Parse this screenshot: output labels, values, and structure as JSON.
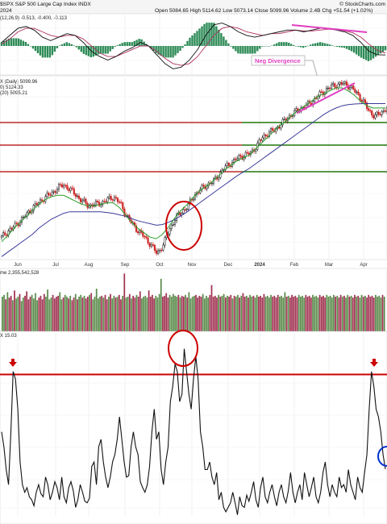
{
  "header": {
    "title": "$SPX S&P 500 Large Cap Index INDX",
    "date": "2024",
    "ohlc": "Open 5084.65  High 5114.62  Low 5073.14  Close 5099.96  Volume 2.4B  Chg +51.54 (+1.02%)",
    "credit": "© StockCharts.com"
  },
  "macd_legend": "(12,26,9) -0.513, -0.400, -0.113",
  "price_legend": {
    "line1": "X (Daily) 5099.96",
    "line2": "0) 5124.33",
    "line3": "(20) 5095.21"
  },
  "volume_legend": "me 2,355,542,528",
  "vix_legend": "X 15.03",
  "annotations": {
    "neg_divergence": "Neg Divergence"
  },
  "colors": {
    "price_up": "#1a1a1a",
    "price_down": "#cc2222",
    "ma_short": "#2aa02a",
    "ma_long": "#3a3a9a",
    "macd_line": "#111111",
    "signal_line": "#b03060",
    "histogram": "#2e8b57",
    "divergence": "#e040c0",
    "resistance_red": "#b00000",
    "support_green": "#008000",
    "circle_red": "#cc0000",
    "circle_blue": "#0033cc",
    "vol_up": "#5a8a4a",
    "vol_down": "#a03050"
  },
  "chart_data": [
    {
      "type": "line",
      "panel": "price",
      "x_tick_labels": [
        "Jun",
        "Jul",
        "Aug",
        "Sep",
        "Oct",
        "Nov",
        "Dec",
        "2024",
        "Feb",
        "Mar",
        "Apr"
      ],
      "series": [
        {
          "values": [
            4230,
            4270,
            4300,
            4340,
            4380,
            4430,
            4460,
            4500,
            4520,
            4560,
            4580,
            4550,
            4510,
            4470,
            4440,
            4450,
            4460,
            4480,
            4500,
            4460,
            4380,
            4320,
            4270,
            4230,
            4180,
            4120,
            4180,
            4280,
            4360,
            4400,
            4440,
            4510,
            4550,
            4580,
            4600,
            4650,
            4700,
            4730,
            4760,
            4780,
            4790,
            4840,
            4900,
            4930,
            4950,
            4990,
            5030,
            5060,
            5090,
            5110,
            5140,
            5180,
            5210,
            5240,
            5250,
            5260,
            5240,
            5200,
            5150,
            5080,
            5040,
            5060,
            5099.96
          ]
        },
        {
          "values": [
            4200,
            4240,
            4290,
            4330,
            4370,
            4410,
            4450,
            4480,
            4500,
            4510,
            4510,
            4490,
            4470,
            4450,
            4440,
            4440,
            4450,
            4460,
            4460,
            4430,
            4380,
            4330,
            4290,
            4260,
            4230,
            4220,
            4250,
            4300,
            4360,
            4410,
            4450,
            4500,
            4540,
            4570,
            4600,
            4640,
            4680,
            4710,
            4740,
            4760,
            4780,
            4820,
            4860,
            4900,
            4940,
            4980,
            5010,
            5050,
            5080,
            5110,
            5140,
            5170,
            5190,
            5210,
            5230,
            5230,
            5210,
            5180,
            5140,
            5110,
            5095,
            5095.21,
            5095.21
          ]
        },
        {
          "values": [
            4100,
            4130,
            4160,
            4190,
            4220,
            4250,
            4290,
            4320,
            4350,
            4370,
            4390,
            4400,
            4400,
            4400,
            4400,
            4400,
            4400,
            4395,
            4390,
            4380,
            4370,
            4355,
            4340,
            4330,
            4320,
            4310,
            4315,
            4330,
            4350,
            4375,
            4400,
            4430,
            4460,
            4490,
            4520,
            4550,
            4580,
            4610,
            4640,
            4665,
            4690,
            4720,
            4750,
            4780,
            4810,
            4840,
            4870,
            4900,
            4930,
            4960,
            4990,
            5020,
            5050,
            5075,
            5095,
            5110,
            5118,
            5122,
            5124,
            5125,
            5124.5,
            5124.33,
            5124.33
          ]
        }
      ],
      "horizontal_lines": [
        {
          "value": 5048,
          "color": "#b00000"
        },
        {
          "value": 4820,
          "color": "#b00000"
        },
        {
          "value": 4600,
          "color": "#b00000"
        },
        {
          "value": 5070,
          "color": "#008000"
        },
        {
          "value": 4800,
          "color": "#008000"
        },
        {
          "value": 4600,
          "color": "#008000"
        }
      ]
    },
    {
      "type": "line",
      "panel": "macd",
      "series": [
        {
          "values": [
            0.2,
            0.6,
            1.0,
            1.1,
            0.9,
            0.5,
            0.3,
            0.5,
            0.7,
            0.6,
            0.2,
            -0.3,
            -0.6,
            -0.8,
            -0.6,
            -0.3,
            -0.1,
            0.2,
            0.0,
            -0.5,
            -1.0,
            -1.3,
            -1.2,
            -0.8,
            -0.2,
            0.6,
            1.2,
            1.3,
            1.1,
            0.8,
            0.6,
            0.5,
            0.6,
            0.7,
            0.8,
            0.9,
            0.9,
            0.8,
            0.9,
            1.0,
            1.0,
            0.9,
            0.8,
            0.6,
            0.2,
            -0.3,
            -0.5,
            -0.513
          ]
        },
        {
          "values": [
            0.1,
            0.4,
            0.8,
            1.0,
            1.0,
            0.8,
            0.6,
            0.5,
            0.6,
            0.6,
            0.4,
            0.0,
            -0.4,
            -0.6,
            -0.6,
            -0.4,
            -0.2,
            0.0,
            0.0,
            -0.3,
            -0.7,
            -1.0,
            -1.1,
            -1.0,
            -0.6,
            0.0,
            0.6,
            1.0,
            1.1,
            1.0,
            0.8,
            0.7,
            0.6,
            0.7,
            0.7,
            0.8,
            0.9,
            0.85,
            0.85,
            0.9,
            0.95,
            0.92,
            0.85,
            0.75,
            0.5,
            0.1,
            -0.25,
            -0.4
          ]
        }
      ]
    },
    {
      "type": "bar",
      "panel": "volume",
      "values": [
        3.9,
        4.1,
        3.6,
        4.4,
        3.8,
        4.0,
        3.5,
        4.6,
        3.7,
        3.9,
        4.2,
        3.4,
        3.8,
        4.0,
        4.5,
        3.6,
        3.9,
        4.1,
        3.7,
        4.3,
        3.5,
        3.8,
        4.0,
        3.6,
        4.2,
        3.9,
        4.7,
        3.6,
        3.8,
        4.1,
        3.7,
        3.9,
        4.0,
        4.4,
        3.6,
        3.8,
        4.1,
        3.9,
        3.7,
        4.0,
        3.5,
        3.8,
        4.2,
        3.6,
        3.9,
        4.1,
        3.8,
        4.0,
        3.7,
        3.9,
        4.1,
        4.3,
        3.6,
        3.9,
        4.8,
        3.7,
        3.9,
        4.0,
        3.8,
        4.1,
        3.6,
        3.9,
        4.2,
        3.7,
        4.0,
        3.8,
        3.9,
        4.1,
        3.6,
        4.0,
        6.5,
        3.8,
        3.9,
        4.2,
        3.7,
        4.0,
        3.8,
        4.1,
        3.9,
        4.5,
        3.7,
        3.9,
        4.0,
        3.8,
        4.6,
        3.9,
        4.1,
        3.7,
        4.0,
        3.8,
        4.2,
        5.9,
        3.9,
        4.0,
        4.3,
        3.8,
        4.1,
        3.9,
        4.2,
        4.0,
        3.9,
        4.1,
        3.8,
        4.0,
        3.9,
        4.1,
        3.8,
        4.4,
        3.7,
        3.9,
        4.0,
        4.1,
        3.8,
        4.0,
        3.9,
        4.2,
        3.7,
        4.0,
        3.8,
        4.1,
        5.2,
        3.9,
        4.0,
        3.8,
        4.1,
        3.9,
        4.0,
        4.2,
        3.8,
        4.0,
        3.9,
        4.1,
        3.7,
        4.0,
        3.9,
        4.1,
        3.8,
        4.0,
        4.3,
        3.9,
        4.0,
        3.8,
        4.1,
        3.9,
        4.0,
        3.8,
        4.1,
        3.9,
        4.0,
        3.8,
        4.2,
        3.9,
        4.0,
        3.8,
        4.1,
        3.9,
        4.0,
        3.8,
        4.1,
        3.9,
        4.0,
        3.8,
        4.4,
        3.9,
        4.0,
        3.8,
        4.1,
        3.9,
        4.0,
        3.8,
        4.1,
        3.9,
        4.0,
        3.8,
        4.1,
        3.9,
        4.0,
        3.8,
        4.1,
        3.9,
        4.0,
        3.8,
        4.1,
        3.9,
        4.0,
        3.8,
        4.1,
        3.9,
        4.0,
        3.8,
        4.1,
        3.9,
        4.0,
        3.8,
        4.1,
        3.9,
        4.0,
        3.8,
        4.1,
        3.9,
        4.0,
        3.8,
        4.1,
        3.9,
        4.0,
        3.8,
        4.1,
        3.9,
        4.0,
        3.8,
        4.1,
        3.9,
        4.0,
        3.8,
        4.1,
        3.9,
        4.0,
        3.8,
        4.1,
        3.9
      ]
    },
    {
      "type": "line",
      "panel": "vix",
      "series": [
        {
          "values": [
            17.5,
            16.5,
            15.0,
            14.0,
            17.5,
            21.5,
            21.0,
            19.0,
            15.5,
            14.0,
            13.5,
            13.8,
            13.2,
            13.0,
            12.6,
            13.5,
            14.0,
            13.4,
            13.2,
            14.5,
            14.0,
            13.0,
            13.5,
            14.2,
            13.8,
            13.0,
            14.5,
            13.2,
            12.8,
            13.8,
            14.2,
            13.6,
            12.5,
            13.0,
            14.0,
            13.5,
            12.9,
            12.8,
            13.1,
            15.2,
            15.5,
            14.0,
            16.5,
            17.0,
            15.5,
            14.5,
            13.8,
            14.5,
            15.5,
            16.0,
            17.0,
            18.5,
            17.0,
            15.5,
            14.5,
            14.6,
            16.5,
            17.5,
            16.5,
            16.0,
            14.2,
            13.8,
            13.5,
            14.0,
            15.2,
            17.5,
            19.0,
            17.0,
            17.5,
            15.0,
            14.0,
            15.5,
            16.5,
            19.5,
            20.5,
            22.0,
            21.5,
            19.5,
            20.0,
            23.0,
            21.5,
            20.0,
            19.0,
            21.0,
            22.5,
            21.0,
            17.5,
            16.5,
            15.0,
            15.0,
            15.5,
            14.5,
            14.0,
            14.8,
            13.0,
            13.5,
            12.5,
            12.2,
            12.5,
            12.8,
            13.5,
            12.8,
            12.0,
            13.2,
            12.6,
            12.5,
            13.3,
            12.9,
            13.5,
            14.2,
            13.0,
            12.5,
            13.8,
            14.5,
            13.2,
            12.8,
            13.5,
            14.0,
            13.2,
            12.6,
            13.5,
            14.0,
            13.2,
            12.8,
            13.6,
            14.8,
            13.5,
            12.8,
            13.5,
            14.0,
            13.0,
            14.8,
            14.0,
            13.2,
            13.8,
            14.5,
            13.2,
            12.8,
            13.5,
            14.8,
            15.5,
            14.0,
            13.2,
            14.0,
            13.5,
            13.2,
            14.5,
            13.8,
            14.0,
            13.5,
            15.0,
            14.0,
            13.5,
            13.0,
            14.5,
            13.8,
            13.5,
            14.8,
            16.0,
            19.0,
            21.5,
            20.5,
            19.0,
            18.5,
            17.5,
            16.0,
            15.03
          ]
        }
      ],
      "horizontal_lines": [
        {
          "value": 21.3,
          "color": "#cc0000"
        }
      ]
    }
  ]
}
